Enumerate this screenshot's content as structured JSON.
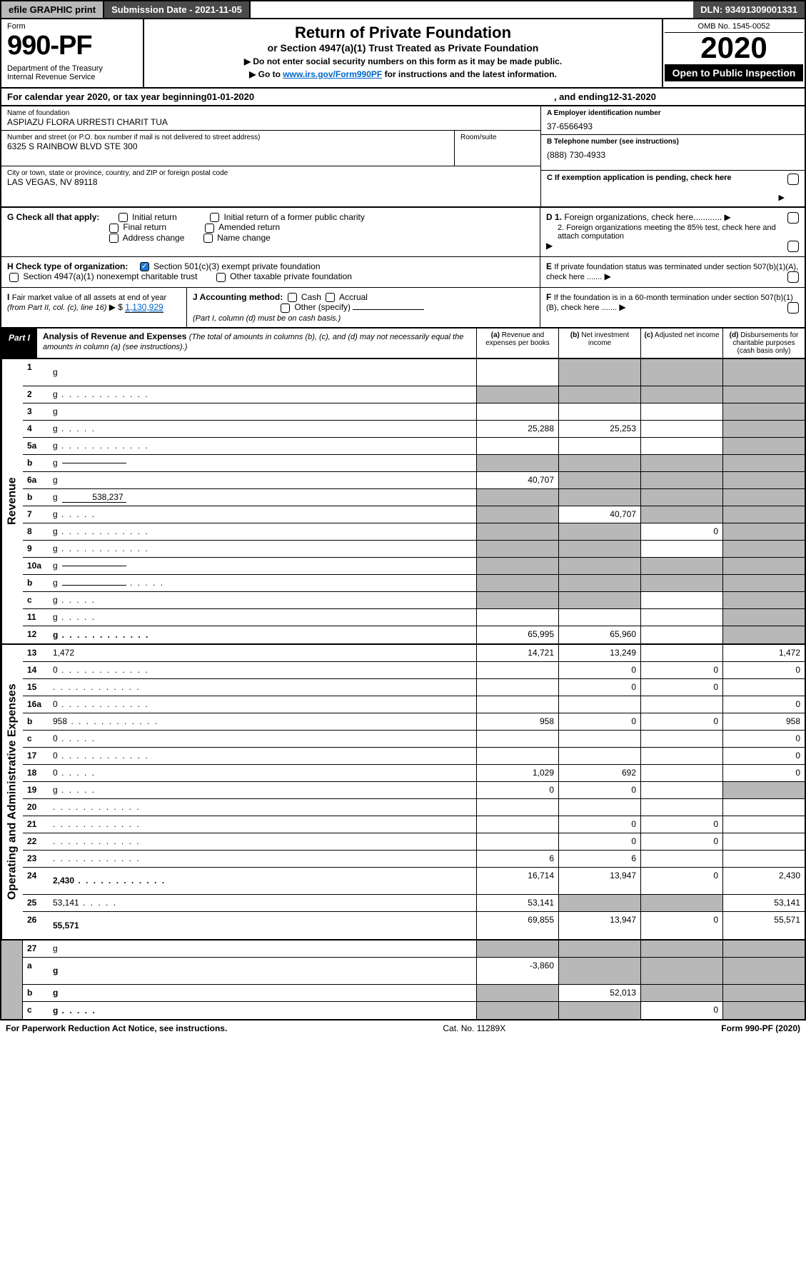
{
  "colors": {
    "black": "#000000",
    "white": "#ffffff",
    "grey_bg": "#b8b8b8",
    "dark_grey": "#4a4a4a",
    "link": "#0066cc",
    "check_blue": "#1976d2"
  },
  "top_bar": {
    "efile": "efile GRAPHIC print",
    "submission": "Submission Date - 2021-11-05",
    "dln": "DLN: 93491309001331"
  },
  "header": {
    "form_label": "Form",
    "form_number": "990-PF",
    "dept": "Department of the Treasury\nInternal Revenue Service",
    "title": "Return of Private Foundation",
    "subtitle": "or Section 4947(a)(1) Trust Treated as Private Foundation",
    "instr1": "▶ Do not enter social security numbers on this form as it may be made public.",
    "instr2_pre": "▶ Go to ",
    "instr2_link": "www.irs.gov/Form990PF",
    "instr2_post": " for instructions and the latest information.",
    "omb": "OMB No. 1545-0052",
    "year": "2020",
    "open_public": "Open to Public Inspection"
  },
  "cal_year": {
    "prefix": "For calendar year 2020, or tax year beginning ",
    "begin": "01-01-2020",
    "mid": " , and ending ",
    "end": "12-31-2020"
  },
  "entity": {
    "name_lbl": "Name of foundation",
    "name": "ASPIAZU FLORA URRESTI CHARIT TUA",
    "addr_lbl": "Number and street (or P.O. box number if mail is not delivered to street address)",
    "addr": "6325 S RAINBOW BLVD STE 300",
    "room_lbl": "Room/suite",
    "room": "",
    "city_lbl": "City or town, state or province, country, and ZIP or foreign postal code",
    "city": "LAS VEGAS, NV  89118",
    "a_lbl": "A Employer identification number",
    "a_val": "37-6566493",
    "b_lbl": "B Telephone number (see instructions)",
    "b_val": "(888) 730-4933",
    "c_lbl": "C If exemption application is pending, check here",
    "d1_lbl": "D 1. Foreign organizations, check here",
    "d2_lbl": "2. Foreign organizations meeting the 85% test, check here and attach computation",
    "e_lbl": "E If private foundation status was terminated under section 507(b)(1)(A), check here",
    "f_lbl": "F If the foundation is in a 60-month termination under section 507(b)(1)(B), check here"
  },
  "checks": {
    "g_label": "G Check all that apply:",
    "g_opts": [
      "Initial return",
      "Final return",
      "Address change",
      "Initial return of a former public charity",
      "Amended return",
      "Name change"
    ],
    "h_label": "H Check type of organization:",
    "h_opt1": "Section 501(c)(3) exempt private foundation",
    "h_opt2": "Section 4947(a)(1) nonexempt charitable trust",
    "h_opt3": "Other taxable private foundation",
    "i_label": "I Fair market value of all assets at end of year (from Part II, col. (c), line 16)",
    "i_val": "1,130,929",
    "j_label": "J Accounting method:",
    "j_opts": [
      "Cash",
      "Accrual",
      "Other (specify)"
    ],
    "j_note": "(Part I, column (d) must be on cash basis.)"
  },
  "part1": {
    "label": "Part I",
    "title": "Analysis of Revenue and Expenses",
    "title_note": "(The total of amounts in columns (b), (c), and (d) may not necessarily equal the amounts in column (a) (see instructions).)",
    "col_a": "(a) Revenue and expenses per books",
    "col_b": "(b) Net investment income",
    "col_c": "(c) Adjusted net income",
    "col_d": "(d) Disbursements for charitable purposes (cash basis only)"
  },
  "sections": {
    "revenue": "Revenue",
    "expenses": "Operating and Administrative Expenses"
  },
  "rows": [
    {
      "n": "1",
      "d": "g",
      "a": "",
      "b": "g",
      "c": "g",
      "tall": true
    },
    {
      "n": "2",
      "d": "g",
      "a": "g",
      "b": "g",
      "c": "g",
      "dots": true
    },
    {
      "n": "3",
      "d": "g",
      "a": "",
      "b": "",
      "c": ""
    },
    {
      "n": "4",
      "d": "g",
      "a": "25,288",
      "b": "25,253",
      "c": "",
      "dots": "short"
    },
    {
      "n": "5a",
      "d": "g",
      "a": "",
      "b": "",
      "c": "",
      "dots": true
    },
    {
      "n": "b",
      "d": "g",
      "a": "g",
      "b": "g",
      "c": "g",
      "inline": ""
    },
    {
      "n": "6a",
      "d": "g",
      "a": "40,707",
      "b": "g",
      "c": "g"
    },
    {
      "n": "b",
      "d": "g",
      "a": "g",
      "b": "g",
      "c": "g",
      "inline": "538,237"
    },
    {
      "n": "7",
      "d": "g",
      "a": "g",
      "b": "40,707",
      "c": "g",
      "dots": "short"
    },
    {
      "n": "8",
      "d": "g",
      "a": "g",
      "b": "g",
      "c": "0",
      "dots": true
    },
    {
      "n": "9",
      "d": "g",
      "a": "g",
      "b": "g",
      "c": "",
      "dots": true
    },
    {
      "n": "10a",
      "d": "g",
      "a": "g",
      "b": "g",
      "c": "g",
      "inline": ""
    },
    {
      "n": "b",
      "d": "g",
      "a": "g",
      "b": "g",
      "c": "g",
      "inline": "",
      "dots": "short"
    },
    {
      "n": "c",
      "d": "g",
      "a": "g",
      "b": "g",
      "c": "",
      "dots": "short"
    },
    {
      "n": "11",
      "d": "g",
      "a": "",
      "b": "",
      "c": "",
      "dots": "short"
    },
    {
      "n": "12",
      "d": "g",
      "a": "65,995",
      "b": "65,960",
      "c": "",
      "bold": true,
      "dots": true
    }
  ],
  "rows_exp": [
    {
      "n": "13",
      "d": "1,472",
      "a": "14,721",
      "b": "13,249",
      "c": ""
    },
    {
      "n": "14",
      "d": "0",
      "a": "",
      "b": "0",
      "c": "0",
      "dots": true
    },
    {
      "n": "15",
      "d": "",
      "a": "",
      "b": "0",
      "c": "0",
      "dots": true
    },
    {
      "n": "16a",
      "d": "0",
      "a": "",
      "b": "",
      "c": "",
      "dots": true
    },
    {
      "n": "b",
      "d": "958",
      "a": "958",
      "b": "0",
      "c": "0",
      "dots": true
    },
    {
      "n": "c",
      "d": "0",
      "a": "",
      "b": "",
      "c": "",
      "dots": "short"
    },
    {
      "n": "17",
      "d": "0",
      "a": "",
      "b": "",
      "c": "",
      "dots": true
    },
    {
      "n": "18",
      "d": "0",
      "a": "1,029",
      "b": "692",
      "c": "",
      "dots": "short"
    },
    {
      "n": "19",
      "d": "g",
      "a": "0",
      "b": "0",
      "c": "",
      "dots": "short"
    },
    {
      "n": "20",
      "d": "",
      "a": "",
      "b": "",
      "c": "",
      "dots": true
    },
    {
      "n": "21",
      "d": "",
      "a": "",
      "b": "0",
      "c": "0",
      "dots": true
    },
    {
      "n": "22",
      "d": "",
      "a": "",
      "b": "0",
      "c": "0",
      "dots": true
    },
    {
      "n": "23",
      "d": "",
      "a": "6",
      "b": "6",
      "c": "",
      "dots": true
    },
    {
      "n": "24",
      "d": "2,430",
      "a": "16,714",
      "b": "13,947",
      "c": "0",
      "bold": true,
      "tall": true,
      "dots": true
    },
    {
      "n": "25",
      "d": "53,141",
      "a": "53,141",
      "b": "g",
      "c": "g",
      "dots": "short"
    },
    {
      "n": "26",
      "d": "55,571",
      "a": "69,855",
      "b": "13,947",
      "c": "0",
      "bold": true,
      "tall": true
    }
  ],
  "rows_bottom": [
    {
      "n": "27",
      "d": "g",
      "a": "g",
      "b": "g",
      "c": "g"
    },
    {
      "n": "a",
      "d": "g",
      "a": "-3,860",
      "b": "g",
      "c": "g",
      "bold": true,
      "tall": true
    },
    {
      "n": "b",
      "d": "g",
      "a": "g",
      "b": "52,013",
      "c": "g",
      "bold": true
    },
    {
      "n": "c",
      "d": "g",
      "a": "g",
      "b": "g",
      "c": "0",
      "bold": true,
      "dots": "short"
    }
  ],
  "footer": {
    "left": "For Paperwork Reduction Act Notice, see instructions.",
    "center": "Cat. No. 11289X",
    "right": "Form 990-PF (2020)"
  }
}
